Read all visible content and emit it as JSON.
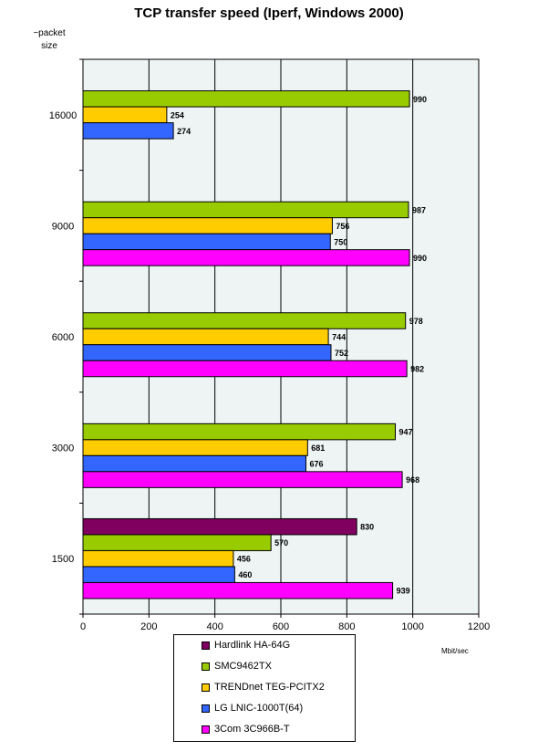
{
  "chart_data": {
    "type": "bar",
    "orientation": "horizontal",
    "title": "TCP transfer speed (Iperf, Windows 2000)",
    "ylabel_line1": "~packet",
    "ylabel_line2": "size",
    "xlabel": "Mbit/sec",
    "xlim": [
      0,
      1200
    ],
    "xticks": [
      "0",
      "200",
      "400",
      "600",
      "800",
      "1000",
      "1200"
    ],
    "grid": true,
    "legend_position": "bottom",
    "categories": [
      "16000",
      "9000",
      "6000",
      "3000",
      "1500"
    ],
    "series": [
      {
        "name": "Hardlink HA-64G",
        "color": "#800060",
        "values": [
          null,
          null,
          null,
          null,
          830
        ]
      },
      {
        "name": "SMC9462TX",
        "color": "#99cc00",
        "values": [
          990,
          987,
          978,
          947,
          570
        ]
      },
      {
        "name": "TRENDnet TEG-PCITX2",
        "color": "#ffcc00",
        "values": [
          254,
          756,
          744,
          681,
          456
        ]
      },
      {
        "name": "LG LNIC-1000T(64)",
        "color": "#3366ff",
        "values": [
          274,
          750,
          752,
          676,
          460
        ]
      },
      {
        "name": "3Com 3C966B-T",
        "color": "#ff00ff",
        "values": [
          null,
          990,
          982,
          968,
          939
        ]
      }
    ]
  }
}
